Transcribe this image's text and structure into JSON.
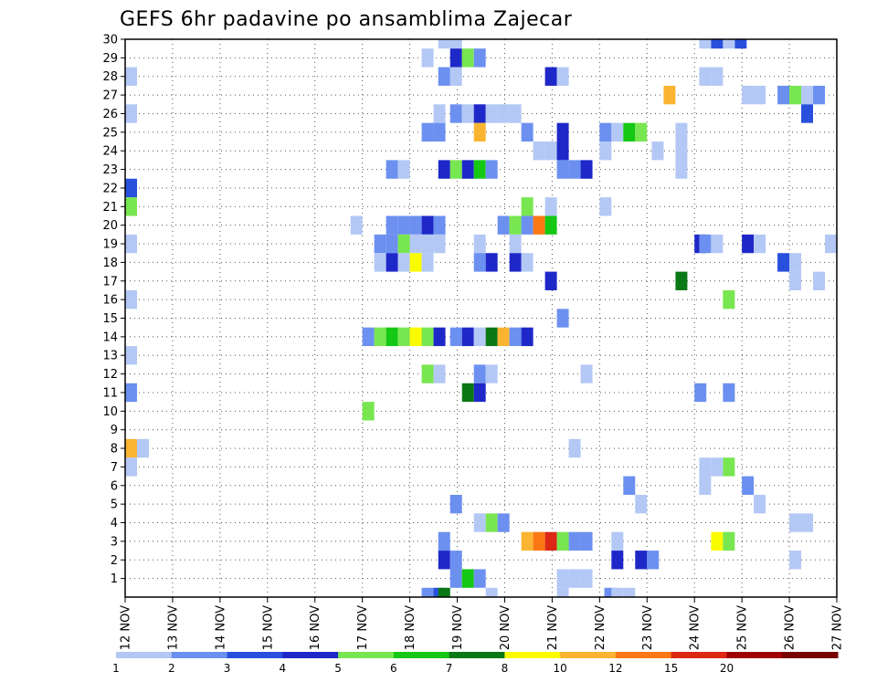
{
  "chart_data": {
    "type": "heatmap",
    "title": "GEFS 6hr padavine po ansamblima Zajecar",
    "xlabel": "",
    "ylabel": "",
    "x_tick_labels": [
      "12 NOV",
      "13 NOV",
      "14 NOV",
      "15 NOV",
      "16 NOV",
      "17 NOV",
      "18 NOV",
      "19 NOV",
      "20 NOV",
      "21 NOV",
      "22 NOV",
      "23 NOV",
      "24 NOV",
      "25 NOV",
      "26 NOV",
      "27 NOV"
    ],
    "y_tick_labels": [
      "1",
      "2",
      "3",
      "4",
      "5",
      "6",
      "7",
      "8",
      "9",
      "10",
      "11",
      "12",
      "13",
      "14",
      "15",
      "16",
      "17",
      "18",
      "19",
      "20",
      "21",
      "22",
      "23",
      "24",
      "25",
      "26",
      "27",
      "28",
      "29",
      "30"
    ],
    "xlim": [
      0,
      15
    ],
    "ylim": [
      0,
      30
    ],
    "time_step": "6hr",
    "grid": true,
    "colorbar": {
      "position": "bottom",
      "levels": [
        "1",
        "2",
        "3",
        "4",
        "5",
        "6",
        "7",
        "8",
        "10",
        "12",
        "15",
        "20"
      ],
      "colors": [
        "#b4c8f5",
        "#6c90f0",
        "#2850dc",
        "#1e28c8",
        "#78e650",
        "#14c814",
        "#0a7814",
        "#fafa00",
        "#fab432",
        "#fa7814",
        "#dc2814",
        "#a00000",
        "#780000"
      ]
    },
    "cells": [
      [
        0,
        28,
        1
      ],
      [
        0,
        26,
        1
      ],
      [
        0,
        22,
        3
      ],
      [
        0,
        21,
        5
      ],
      [
        0,
        19,
        1
      ],
      [
        0,
        16,
        1
      ],
      [
        0,
        13,
        1
      ],
      [
        0,
        11,
        2
      ],
      [
        0,
        8,
        10
      ],
      [
        0,
        7,
        1
      ],
      [
        0.25,
        8,
        1
      ],
      [
        4.75,
        20,
        1
      ],
      [
        5,
        14,
        2
      ],
      [
        5,
        10,
        5
      ],
      [
        5.25,
        19,
        2
      ],
      [
        5.25,
        18,
        1
      ],
      [
        5.25,
        14,
        5
      ],
      [
        5.5,
        23,
        2
      ],
      [
        5.5,
        20,
        2
      ],
      [
        5.5,
        19,
        2
      ],
      [
        5.5,
        18,
        4
      ],
      [
        5.5,
        14,
        6
      ],
      [
        5.75,
        23,
        1
      ],
      [
        5.75,
        20,
        2
      ],
      [
        5.75,
        19,
        5
      ],
      [
        5.75,
        18,
        1
      ],
      [
        5.75,
        14,
        5
      ],
      [
        6,
        20,
        2
      ],
      [
        6,
        19,
        1
      ],
      [
        6,
        18,
        8
      ],
      [
        6,
        14,
        8
      ],
      [
        6.25,
        29,
        1
      ],
      [
        6.25,
        25,
        2
      ],
      [
        6.25,
        20,
        4
      ],
      [
        6.25,
        19,
        1
      ],
      [
        6.25,
        18,
        1
      ],
      [
        6.25,
        14,
        5
      ],
      [
        6.25,
        12,
        5
      ],
      [
        6.25,
        0,
        2
      ],
      [
        6.5,
        26,
        1
      ],
      [
        6.5,
        25,
        2
      ],
      [
        6.5,
        20,
        2
      ],
      [
        6.5,
        19,
        1
      ],
      [
        6.5,
        14,
        4
      ],
      [
        6.5,
        12,
        1
      ],
      [
        6.5,
        0,
        3
      ],
      [
        6.6,
        30,
        1
      ],
      [
        6.6,
        28,
        2
      ],
      [
        6.6,
        23,
        4
      ],
      [
        6.6,
        3,
        2
      ],
      [
        6.6,
        2,
        4
      ],
      [
        6.6,
        0,
        7
      ],
      [
        6.85,
        30,
        1
      ],
      [
        6.85,
        29,
        4
      ],
      [
        6.85,
        28,
        1
      ],
      [
        6.85,
        26,
        2
      ],
      [
        6.85,
        23,
        5
      ],
      [
        6.85,
        14,
        2
      ],
      [
        6.85,
        5,
        2
      ],
      [
        6.85,
        2,
        2
      ],
      [
        6.85,
        1,
        2
      ],
      [
        7.1,
        29,
        5
      ],
      [
        7.1,
        26,
        1
      ],
      [
        7.1,
        23,
        4
      ],
      [
        7.1,
        14,
        4
      ],
      [
        7.1,
        11,
        7
      ],
      [
        7.1,
        1,
        6
      ],
      [
        7.35,
        29,
        2
      ],
      [
        7.35,
        26,
        4
      ],
      [
        7.35,
        25,
        10
      ],
      [
        7.35,
        23,
        6
      ],
      [
        7.35,
        19,
        1
      ],
      [
        7.35,
        18,
        2
      ],
      [
        7.35,
        14,
        1
      ],
      [
        7.35,
        12,
        2
      ],
      [
        7.35,
        11,
        4
      ],
      [
        7.35,
        4,
        1
      ],
      [
        7.35,
        1,
        2
      ],
      [
        7.6,
        26,
        1
      ],
      [
        7.6,
        23,
        2
      ],
      [
        7.6,
        18,
        4
      ],
      [
        7.6,
        14,
        7
      ],
      [
        7.6,
        12,
        1
      ],
      [
        7.6,
        4,
        5
      ],
      [
        7.6,
        0,
        1
      ],
      [
        7.85,
        26,
        1
      ],
      [
        7.85,
        20,
        2
      ],
      [
        7.85,
        14,
        10
      ],
      [
        7.85,
        4,
        2
      ],
      [
        8.1,
        26,
        1
      ],
      [
        8.1,
        20,
        5
      ],
      [
        8.1,
        19,
        1
      ],
      [
        8.1,
        18,
        4
      ],
      [
        8.1,
        14,
        2
      ],
      [
        8.35,
        25,
        2
      ],
      [
        8.35,
        21,
        5
      ],
      [
        8.35,
        20,
        2
      ],
      [
        8.35,
        14,
        4
      ],
      [
        8.35,
        18,
        1
      ],
      [
        8.35,
        3,
        10
      ],
      [
        8.6,
        24,
        1
      ],
      [
        8.6,
        20,
        12
      ],
      [
        8.6,
        3,
        12
      ],
      [
        8.85,
        28,
        4
      ],
      [
        8.85,
        24,
        1
      ],
      [
        8.85,
        21,
        1
      ],
      [
        8.85,
        20,
        6
      ],
      [
        8.85,
        17,
        4
      ],
      [
        8.85,
        3,
        15
      ],
      [
        9.1,
        28,
        1
      ],
      [
        9.1,
        25,
        4
      ],
      [
        9.1,
        24,
        4
      ],
      [
        9.1,
        23,
        2
      ],
      [
        9.1,
        15,
        2
      ],
      [
        9.1,
        3,
        5
      ],
      [
        9.1,
        1,
        1
      ],
      [
        9.1,
        0,
        1
      ],
      [
        9.35,
        23,
        2
      ],
      [
        9.35,
        8,
        1
      ],
      [
        9.35,
        3,
        2
      ],
      [
        9.35,
        1,
        1
      ],
      [
        9.6,
        23,
        4
      ],
      [
        9.6,
        12,
        1
      ],
      [
        9.6,
        3,
        2
      ],
      [
        9.6,
        1,
        1
      ],
      [
        10,
        21,
        1
      ],
      [
        10,
        25,
        2
      ],
      [
        10,
        24,
        1
      ],
      [
        10.1,
        0,
        2
      ],
      [
        10.25,
        25,
        1
      ],
      [
        10.25,
        3,
        1
      ],
      [
        10.25,
        2,
        4
      ],
      [
        10.25,
        0,
        1
      ],
      [
        10.5,
        25,
        6
      ],
      [
        10.5,
        6,
        2
      ],
      [
        10.5,
        0,
        1
      ],
      [
        10.75,
        25,
        5
      ],
      [
        10.75,
        5,
        1
      ],
      [
        10.75,
        2,
        4
      ],
      [
        11,
        2,
        2
      ],
      [
        11.1,
        24,
        1
      ],
      [
        11.35,
        27,
        10
      ],
      [
        11.6,
        25,
        1
      ],
      [
        11.6,
        24,
        1
      ],
      [
        11.6,
        23,
        1
      ],
      [
        11.6,
        17,
        7
      ],
      [
        12,
        19,
        4
      ],
      [
        12,
        11,
        2
      ],
      [
        12.1,
        30,
        1
      ],
      [
        12.1,
        28,
        1
      ],
      [
        12.1,
        19,
        2
      ],
      [
        12.1,
        7,
        1
      ],
      [
        12.1,
        6,
        1
      ],
      [
        12.35,
        30,
        3
      ],
      [
        12.35,
        28,
        1
      ],
      [
        12.35,
        19,
        1
      ],
      [
        12.35,
        7,
        1
      ],
      [
        12.35,
        3,
        8
      ],
      [
        12.6,
        30,
        1
      ],
      [
        12.6,
        16,
        5
      ],
      [
        12.6,
        11,
        2
      ],
      [
        12.6,
        7,
        5
      ],
      [
        12.6,
        3,
        5
      ],
      [
        12.85,
        30,
        3
      ],
      [
        13,
        27,
        1
      ],
      [
        13,
        19,
        4
      ],
      [
        13,
        6,
        2
      ],
      [
        13.25,
        27,
        1
      ],
      [
        13.25,
        19,
        1
      ],
      [
        13.25,
        5,
        1
      ],
      [
        13.75,
        27,
        2
      ],
      [
        13.75,
        18,
        3
      ],
      [
        14,
        27,
        5
      ],
      [
        14,
        18,
        1
      ],
      [
        14,
        17,
        1
      ],
      [
        14,
        4,
        1
      ],
      [
        14,
        2,
        1
      ],
      [
        14.25,
        27,
        1
      ],
      [
        14.25,
        26,
        3
      ],
      [
        14.25,
        4,
        1
      ],
      [
        14.5,
        27,
        2
      ],
      [
        14.5,
        17,
        1
      ],
      [
        14.75,
        19,
        1
      ]
    ]
  }
}
